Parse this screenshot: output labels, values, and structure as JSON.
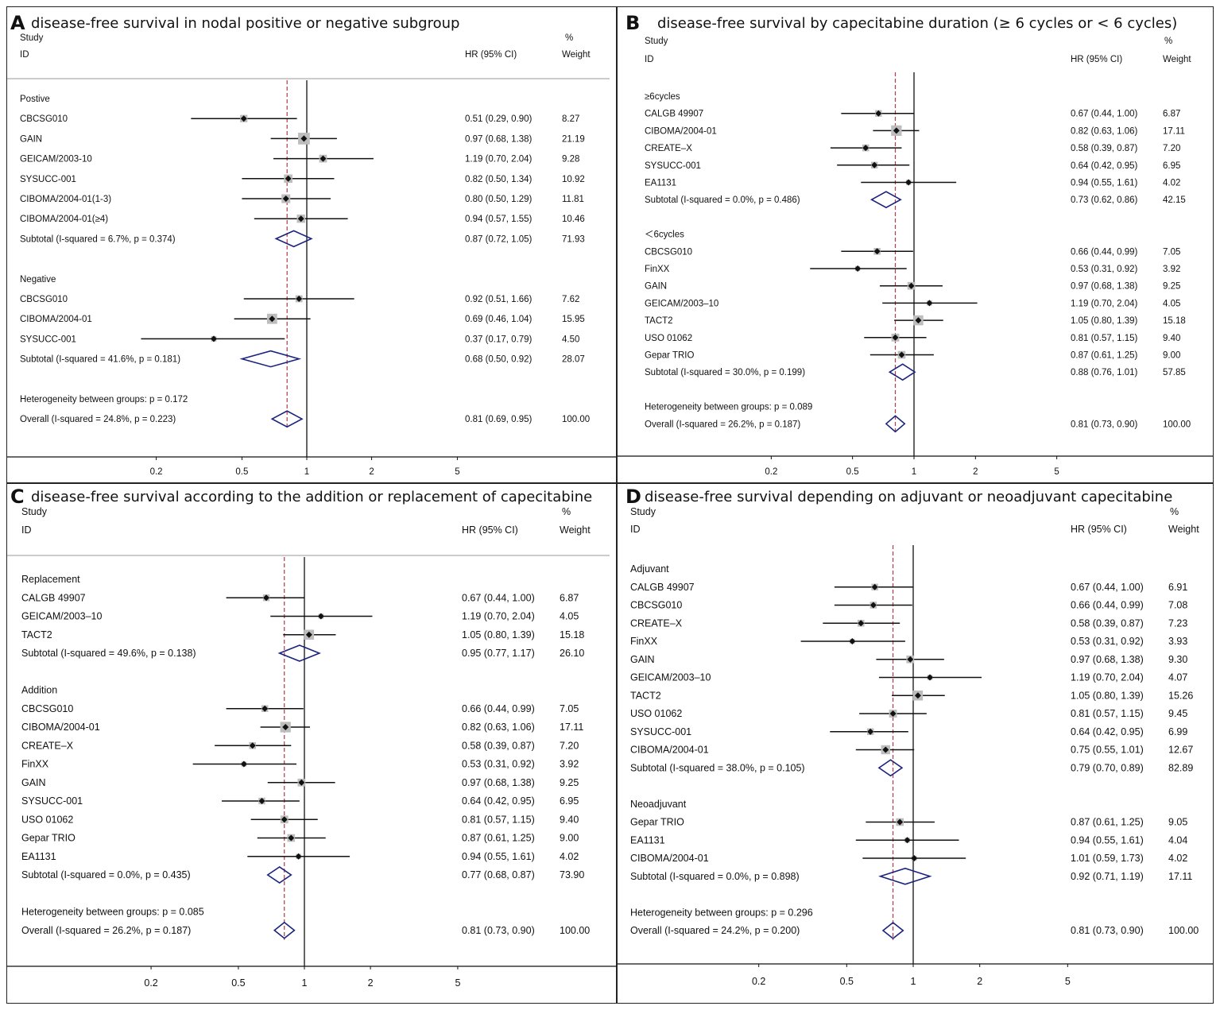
{
  "chart_data": [
    {
      "type": "forest",
      "letter": "A",
      "title": "disease-free survival in nodal positive or negative subgroup",
      "header": {
        "study": "Study",
        "id": "ID",
        "hr": "HR (95% CI)",
        "pct": "%",
        "weight": "Weight"
      },
      "xscale": "log",
      "xticks": [
        "0.2",
        "0.5",
        "1",
        "2",
        "5"
      ],
      "overall_hr": 0.81,
      "rows": [
        {
          "kind": "group",
          "label": "Postive"
        },
        {
          "kind": "study",
          "label": "CBCSG010",
          "hr": 0.51,
          "lo": 0.29,
          "hi": 0.9,
          "text": "0.51 (0.29, 0.90)",
          "weight": "8.27",
          "w": 8.27
        },
        {
          "kind": "study",
          "label": "GAIN",
          "hr": 0.97,
          "lo": 0.68,
          "hi": 1.38,
          "text": "0.97 (0.68, 1.38)",
          "weight": "21.19",
          "w": 21.19
        },
        {
          "kind": "study",
          "label": "GEICAM/2003-10",
          "hr": 1.19,
          "lo": 0.7,
          "hi": 2.04,
          "text": "1.19 (0.70, 2.04)",
          "weight": "9.28",
          "w": 9.28
        },
        {
          "kind": "study",
          "label": "SYSUCC-001",
          "hr": 0.82,
          "lo": 0.5,
          "hi": 1.34,
          "text": "0.82 (0.50, 1.34)",
          "weight": "10.92",
          "w": 10.92
        },
        {
          "kind": "study",
          "label": "CIBOMA/2004-01(1-3)",
          "hr": 0.8,
          "lo": 0.5,
          "hi": 1.29,
          "text": "0.80 (0.50, 1.29)",
          "weight": "11.81",
          "w": 11.81
        },
        {
          "kind": "study",
          "label": "CIBOMA/2004-01(≥4)",
          "hr": 0.94,
          "lo": 0.57,
          "hi": 1.55,
          "text": "0.94 (0.57, 1.55)",
          "weight": "10.46",
          "w": 10.46
        },
        {
          "kind": "subtotal",
          "label": "Subtotal  (I-squared = 6.7%, p = 0.374)",
          "hr": 0.87,
          "lo": 0.72,
          "hi": 1.05,
          "text": "0.87 (0.72, 1.05)",
          "weight": "71.93"
        },
        {
          "kind": "gap"
        },
        {
          "kind": "group",
          "label": "Negative"
        },
        {
          "kind": "study",
          "label": "CBCSG010",
          "hr": 0.92,
          "lo": 0.51,
          "hi": 1.66,
          "text": "0.92 (0.51, 1.66)",
          "weight": "7.62",
          "w": 7.62
        },
        {
          "kind": "study",
          "label": "CIBOMA/2004-01",
          "hr": 0.69,
          "lo": 0.46,
          "hi": 1.04,
          "text": "0.69 (0.46, 1.04)",
          "weight": "15.95",
          "w": 15.95
        },
        {
          "kind": "study",
          "label": "SYSUCC-001",
          "hr": 0.37,
          "lo": 0.17,
          "hi": 0.79,
          "text": "0.37 (0.17, 0.79)",
          "weight": "4.50",
          "w": 4.5
        },
        {
          "kind": "subtotal",
          "label": "Subtotal  (I-squared = 41.6%, p = 0.181)",
          "hr": 0.68,
          "lo": 0.5,
          "hi": 0.92,
          "text": "0.68 (0.50, 0.92)",
          "weight": "28.07"
        },
        {
          "kind": "gap"
        },
        {
          "kind": "note",
          "label": "Heterogeneity between groups: p = 0.172"
        },
        {
          "kind": "subtotal",
          "label": "Overall  (I-squared = 24.8%, p = 0.223)",
          "hr": 0.81,
          "lo": 0.69,
          "hi": 0.95,
          "text": "0.81 (0.69, 0.95)",
          "weight": "100.00"
        }
      ]
    },
    {
      "type": "forest",
      "letter": "B",
      "title": "disease-free survival by capecitabine duration (≥ 6 cycles or < 6 cycles)",
      "header": {
        "study": "Study",
        "id": "ID",
        "hr": "HR (95% CI)",
        "pct": "%",
        "weight": "Weight"
      },
      "xscale": "log",
      "xticks": [
        "0.2",
        "0.5",
        "1",
        "2",
        "5"
      ],
      "overall_hr": 0.81,
      "rows": [
        {
          "kind": "group",
          "label": "≥6cycles"
        },
        {
          "kind": "study",
          "label": "CALGB 49907",
          "hr": 0.67,
          "lo": 0.44,
          "hi": 1.0,
          "text": "0.67 (0.44, 1.00)",
          "weight": "6.87",
          "w": 6.87
        },
        {
          "kind": "study",
          "label": "CIBOMA/2004-01",
          "hr": 0.82,
          "lo": 0.63,
          "hi": 1.06,
          "text": "0.82 (0.63, 1.06)",
          "weight": "17.11",
          "w": 17.11
        },
        {
          "kind": "study",
          "label": "CREATE–X",
          "hr": 0.58,
          "lo": 0.39,
          "hi": 0.87,
          "text": "0.58 (0.39, 0.87)",
          "weight": "7.20",
          "w": 7.2
        },
        {
          "kind": "study",
          "label": "SYSUCC-001",
          "hr": 0.64,
          "lo": 0.42,
          "hi": 0.95,
          "text": "0.64 (0.42, 0.95)",
          "weight": "6.95",
          "w": 6.95
        },
        {
          "kind": "study",
          "label": "EA1131",
          "hr": 0.94,
          "lo": 0.55,
          "hi": 1.61,
          "text": "0.94 (0.55, 1.61)",
          "weight": "4.02",
          "w": 4.02
        },
        {
          "kind": "subtotal",
          "label": "Subtotal  (I-squared = 0.0%, p = 0.486)",
          "hr": 0.73,
          "lo": 0.62,
          "hi": 0.86,
          "text": "0.73 (0.62, 0.86)",
          "weight": "42.15"
        },
        {
          "kind": "gap"
        },
        {
          "kind": "group",
          "label": "＜6cycles"
        },
        {
          "kind": "study",
          "label": "CBCSG010",
          "hr": 0.66,
          "lo": 0.44,
          "hi": 0.99,
          "text": "0.66 (0.44, 0.99)",
          "weight": "7.05",
          "w": 7.05
        },
        {
          "kind": "study",
          "label": "FinXX",
          "hr": 0.53,
          "lo": 0.31,
          "hi": 0.92,
          "text": "0.53 (0.31, 0.92)",
          "weight": "3.92",
          "w": 3.92
        },
        {
          "kind": "study",
          "label": "GAIN",
          "hr": 0.97,
          "lo": 0.68,
          "hi": 1.38,
          "text": "0.97 (0.68, 1.38)",
          "weight": "9.25",
          "w": 9.25
        },
        {
          "kind": "study",
          "label": "GEICAM/2003–10",
          "hr": 1.19,
          "lo": 0.7,
          "hi": 2.04,
          "text": "1.19 (0.70, 2.04)",
          "weight": "4.05",
          "w": 4.05
        },
        {
          "kind": "study",
          "label": "TACT2",
          "hr": 1.05,
          "lo": 0.8,
          "hi": 1.39,
          "text": "1.05 (0.80, 1.39)",
          "weight": "15.18",
          "w": 15.18
        },
        {
          "kind": "study",
          "label": "USO 01062",
          "hr": 0.81,
          "lo": 0.57,
          "hi": 1.15,
          "text": "0.81 (0.57, 1.15)",
          "weight": "9.40",
          "w": 9.4
        },
        {
          "kind": "study",
          "label": "Gepar TRIO",
          "hr": 0.87,
          "lo": 0.61,
          "hi": 1.25,
          "text": "0.87 (0.61, 1.25)",
          "weight": "9.00",
          "w": 9.0
        },
        {
          "kind": "subtotal",
          "label": "Subtotal  (I-squared = 30.0%, p = 0.199)",
          "hr": 0.88,
          "lo": 0.76,
          "hi": 1.01,
          "text": "0.88 (0.76, 1.01)",
          "weight": "57.85"
        },
        {
          "kind": "gap"
        },
        {
          "kind": "note",
          "label": "Heterogeneity between groups: p = 0.089"
        },
        {
          "kind": "subtotal",
          "label": "Overall  (I-squared = 26.2%, p = 0.187)",
          "hr": 0.81,
          "lo": 0.73,
          "hi": 0.9,
          "text": "0.81 (0.73, 0.90)",
          "weight": "100.00"
        }
      ]
    },
    {
      "type": "forest",
      "letter": "C",
      "title": "disease-free survival according to the addition or replacement of capecitabine",
      "header": {
        "study": "Study",
        "id": "ID",
        "hr": "HR (95% CI)",
        "pct": "%",
        "weight": "Weight"
      },
      "xscale": "log",
      "xticks": [
        "0.2",
        "0.5",
        "1",
        "2",
        "5"
      ],
      "overall_hr": 0.81,
      "rows": [
        {
          "kind": "group",
          "label": "Replacement"
        },
        {
          "kind": "study",
          "label": "CALGB 49907",
          "hr": 0.67,
          "lo": 0.44,
          "hi": 1.0,
          "text": "0.67 (0.44, 1.00)",
          "weight": "6.87",
          "w": 6.87
        },
        {
          "kind": "study",
          "label": "GEICAM/2003–10",
          "hr": 1.19,
          "lo": 0.7,
          "hi": 2.04,
          "text": "1.19 (0.70, 2.04)",
          "weight": "4.05",
          "w": 4.05
        },
        {
          "kind": "study",
          "label": "TACT2",
          "hr": 1.05,
          "lo": 0.8,
          "hi": 1.39,
          "text": "1.05 (0.80, 1.39)",
          "weight": "15.18",
          "w": 15.18
        },
        {
          "kind": "subtotal",
          "label": "Subtotal  (I-squared = 49.6%, p = 0.138)",
          "hr": 0.95,
          "lo": 0.77,
          "hi": 1.17,
          "text": "0.95 (0.77, 1.17)",
          "weight": "26.10"
        },
        {
          "kind": "gap"
        },
        {
          "kind": "group",
          "label": "Addition"
        },
        {
          "kind": "study",
          "label": "CBCSG010",
          "hr": 0.66,
          "lo": 0.44,
          "hi": 0.99,
          "text": "0.66 (0.44, 0.99)",
          "weight": "7.05",
          "w": 7.05
        },
        {
          "kind": "study",
          "label": "CIBOMA/2004-01",
          "hr": 0.82,
          "lo": 0.63,
          "hi": 1.06,
          "text": "0.82 (0.63, 1.06)",
          "weight": "17.11",
          "w": 17.11
        },
        {
          "kind": "study",
          "label": "CREATE–X",
          "hr": 0.58,
          "lo": 0.39,
          "hi": 0.87,
          "text": "0.58 (0.39, 0.87)",
          "weight": "7.20",
          "w": 7.2
        },
        {
          "kind": "study",
          "label": "FinXX",
          "hr": 0.53,
          "lo": 0.31,
          "hi": 0.92,
          "text": "0.53 (0.31, 0.92)",
          "weight": "3.92",
          "w": 3.92
        },
        {
          "kind": "study",
          "label": "GAIN",
          "hr": 0.97,
          "lo": 0.68,
          "hi": 1.38,
          "text": "0.97 (0.68, 1.38)",
          "weight": "9.25",
          "w": 9.25
        },
        {
          "kind": "study",
          "label": "SYSUCC-001",
          "hr": 0.64,
          "lo": 0.42,
          "hi": 0.95,
          "text": "0.64 (0.42, 0.95)",
          "weight": "6.95",
          "w": 6.95
        },
        {
          "kind": "study",
          "label": "USO 01062",
          "hr": 0.81,
          "lo": 0.57,
          "hi": 1.15,
          "text": "0.81 (0.57, 1.15)",
          "weight": "9.40",
          "w": 9.4
        },
        {
          "kind": "study",
          "label": "Gepar TRIO",
          "hr": 0.87,
          "lo": 0.61,
          "hi": 1.25,
          "text": "0.87 (0.61, 1.25)",
          "weight": "9.00",
          "w": 9.0
        },
        {
          "kind": "study",
          "label": "EA1131",
          "hr": 0.94,
          "lo": 0.55,
          "hi": 1.61,
          "text": "0.94 (0.55, 1.61)",
          "weight": "4.02",
          "w": 4.02
        },
        {
          "kind": "subtotal",
          "label": "Subtotal  (I-squared = 0.0%, p = 0.435)",
          "hr": 0.77,
          "lo": 0.68,
          "hi": 0.87,
          "text": "0.77 (0.68, 0.87)",
          "weight": "73.90"
        },
        {
          "kind": "gap"
        },
        {
          "kind": "note",
          "label": "Heterogeneity between groups: p = 0.085"
        },
        {
          "kind": "subtotal",
          "label": "Overall  (I-squared = 26.2%, p = 0.187)",
          "hr": 0.81,
          "lo": 0.73,
          "hi": 0.9,
          "text": "0.81 (0.73, 0.90)",
          "weight": "100.00"
        }
      ]
    },
    {
      "type": "forest",
      "letter": "D",
      "title": "disease-free survival depending on adjuvant or neoadjuvant capecitabine",
      "header": {
        "study": "Study",
        "id": "ID",
        "hr": "HR (95% CI)",
        "pct": "%",
        "weight": "Weight"
      },
      "xscale": "log",
      "xticks": [
        "0.2",
        "0.5",
        "1",
        "2",
        "5"
      ],
      "overall_hr": 0.81,
      "rows": [
        {
          "kind": "group",
          "label": "Adjuvant"
        },
        {
          "kind": "study",
          "label": "CALGB 49907",
          "hr": 0.67,
          "lo": 0.44,
          "hi": 1.0,
          "text": "0.67 (0.44, 1.00)",
          "weight": "6.91",
          "w": 6.91
        },
        {
          "kind": "study",
          "label": "CBCSG010",
          "hr": 0.66,
          "lo": 0.44,
          "hi": 0.99,
          "text": "0.66 (0.44, 0.99)",
          "weight": "7.08",
          "w": 7.08
        },
        {
          "kind": "study",
          "label": "CREATE–X",
          "hr": 0.58,
          "lo": 0.39,
          "hi": 0.87,
          "text": "0.58 (0.39, 0.87)",
          "weight": "7.23",
          "w": 7.23
        },
        {
          "kind": "study",
          "label": "FinXX",
          "hr": 0.53,
          "lo": 0.31,
          "hi": 0.92,
          "text": "0.53 (0.31, 0.92)",
          "weight": "3.93",
          "w": 3.93
        },
        {
          "kind": "study",
          "label": "GAIN",
          "hr": 0.97,
          "lo": 0.68,
          "hi": 1.38,
          "text": "0.97 (0.68, 1.38)",
          "weight": "9.30",
          "w": 9.3
        },
        {
          "kind": "study",
          "label": "GEICAM/2003–10",
          "hr": 1.19,
          "lo": 0.7,
          "hi": 2.04,
          "text": "1.19 (0.70, 2.04)",
          "weight": "4.07",
          "w": 4.07
        },
        {
          "kind": "study",
          "label": "TACT2",
          "hr": 1.05,
          "lo": 0.8,
          "hi": 1.39,
          "text": "1.05 (0.80, 1.39)",
          "weight": "15.26",
          "w": 15.26
        },
        {
          "kind": "study",
          "label": "USO 01062",
          "hr": 0.81,
          "lo": 0.57,
          "hi": 1.15,
          "text": "0.81 (0.57, 1.15)",
          "weight": "9.45",
          "w": 9.45
        },
        {
          "kind": "study",
          "label": "SYSUCC-001",
          "hr": 0.64,
          "lo": 0.42,
          "hi": 0.95,
          "text": "0.64 (0.42, 0.95)",
          "weight": "6.99",
          "w": 6.99
        },
        {
          "kind": "study",
          "label": "CIBOMA/2004-01",
          "hr": 0.75,
          "lo": 0.55,
          "hi": 1.01,
          "text": "0.75 (0.55, 1.01)",
          "weight": "12.67",
          "w": 12.67
        },
        {
          "kind": "subtotal",
          "label": "Subtotal  (I-squared = 38.0%, p = 0.105)",
          "hr": 0.79,
          "lo": 0.7,
          "hi": 0.89,
          "text": "0.79 (0.70, 0.89)",
          "weight": "82.89"
        },
        {
          "kind": "gap"
        },
        {
          "kind": "group",
          "label": "Neoadjuvant"
        },
        {
          "kind": "study",
          "label": "Gepar TRIO",
          "hr": 0.87,
          "lo": 0.61,
          "hi": 1.25,
          "text": "0.87 (0.61, 1.25)",
          "weight": "9.05",
          "w": 9.05
        },
        {
          "kind": "study",
          "label": "EA1131",
          "hr": 0.94,
          "lo": 0.55,
          "hi": 1.61,
          "text": "0.94 (0.55, 1.61)",
          "weight": "4.04",
          "w": 4.04
        },
        {
          "kind": "study",
          "label": "CIBOMA/2004-01",
          "hr": 1.01,
          "lo": 0.59,
          "hi": 1.73,
          "text": "1.01 (0.59, 1.73)",
          "weight": "4.02",
          "w": 4.02
        },
        {
          "kind": "subtotal",
          "label": "Subtotal  (I-squared = 0.0%, p = 0.898)",
          "hr": 0.92,
          "lo": 0.71,
          "hi": 1.19,
          "text": "0.92 (0.71, 1.19)",
          "weight": "17.11"
        },
        {
          "kind": "gap"
        },
        {
          "kind": "note",
          "label": "Heterogeneity between groups: p = 0.296"
        },
        {
          "kind": "subtotal",
          "label": "Overall  (I-squared = 24.2%, p = 0.200)",
          "hr": 0.81,
          "lo": 0.73,
          "hi": 0.9,
          "text": "0.81 (0.73, 0.90)",
          "weight": "100.00"
        }
      ]
    }
  ],
  "colors": {
    "diamond": "#1a237e",
    "ref_line": "#b23a48",
    "box": "#bdbdbd",
    "line": "#111111"
  }
}
